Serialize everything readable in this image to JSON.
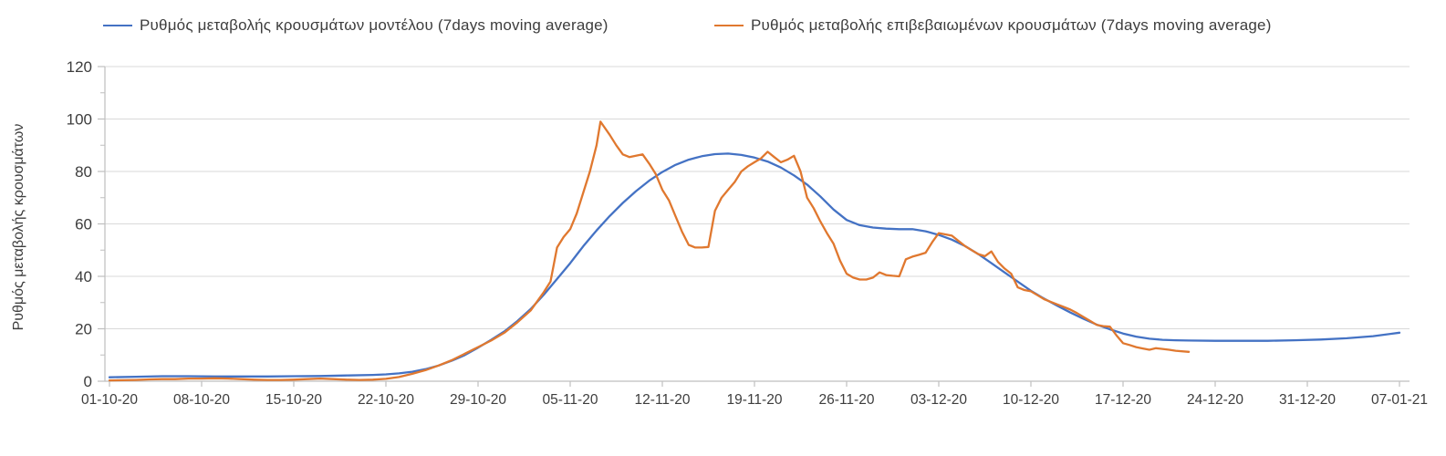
{
  "legend": [
    {
      "label": "Ρυθμός μεταβολής κρουσμάτων μοντέλου (7days moving average)",
      "color": "#4472C4"
    },
    {
      "label": "Ρυθμός μεταβολής επιβεβαιωμένων κρουσμάτων (7days moving average)",
      "color": "#E0782F"
    }
  ],
  "colors": {
    "model_line": "#4472C4",
    "confirmed_line": "#E0782F",
    "gridline": "#D9D9D9",
    "axis": "#BFBFBF",
    "tick_text": "#3d3d3d"
  },
  "chart_data": {
    "type": "line",
    "title": "",
    "xlabel": "",
    "ylabel": "Ρυθμός μεταβολής κρουσμάτων",
    "ylim": [
      0,
      120
    ],
    "y_major_ticks": [
      0,
      20,
      40,
      60,
      80,
      100,
      120
    ],
    "y_minor_tick_step": 10,
    "grid": "horizontal",
    "legend_position": "top",
    "x_axis": {
      "unit": "days since 01-10-20",
      "range_days": [
        0,
        98
      ],
      "tick_days": [
        0,
        7,
        14,
        21,
        28,
        35,
        42,
        49,
        56,
        63,
        70,
        77,
        84,
        91,
        98
      ],
      "tick_labels": [
        "01-10-20",
        "08-10-20",
        "15-10-20",
        "22-10-20",
        "29-10-20",
        "05-11-20",
        "12-11-20",
        "19-11-20",
        "26-11-20",
        "03-12-20",
        "10-12-20",
        "17-12-20",
        "24-12-20",
        "31-12-20",
        "07-01-21"
      ]
    },
    "series": [
      {
        "name": "Ρυθμός μεταβολής κρουσμάτων μοντέλου (7days moving average)",
        "color": "#4472C4",
        "points": [
          [
            0,
            1.5
          ],
          [
            2,
            1.7
          ],
          [
            4,
            1.9
          ],
          [
            6,
            1.9
          ],
          [
            8,
            1.8
          ],
          [
            10,
            1.8
          ],
          [
            12,
            1.8
          ],
          [
            14,
            1.9
          ],
          [
            16,
            2.0
          ],
          [
            18,
            2.2
          ],
          [
            20,
            2.4
          ],
          [
            21,
            2.6
          ],
          [
            22,
            3.0
          ],
          [
            23,
            3.6
          ],
          [
            24,
            4.6
          ],
          [
            25,
            6.0
          ],
          [
            26,
            7.8
          ],
          [
            27,
            10.0
          ],
          [
            28,
            12.8
          ],
          [
            29,
            15.8
          ],
          [
            30,
            19.0
          ],
          [
            31,
            23.0
          ],
          [
            32,
            27.5
          ],
          [
            33,
            33.0
          ],
          [
            34,
            39.0
          ],
          [
            35,
            45.0
          ],
          [
            36,
            51.5
          ],
          [
            37,
            57.5
          ],
          [
            38,
            63.0
          ],
          [
            39,
            68.0
          ],
          [
            40,
            72.5
          ],
          [
            41,
            76.5
          ],
          [
            42,
            79.8
          ],
          [
            43,
            82.5
          ],
          [
            44,
            84.5
          ],
          [
            45,
            85.8
          ],
          [
            46,
            86.6
          ],
          [
            47,
            86.8
          ],
          [
            48,
            86.3
          ],
          [
            49,
            85.3
          ],
          [
            50,
            83.8
          ],
          [
            51,
            81.5
          ],
          [
            52,
            78.5
          ],
          [
            53,
            75.0
          ],
          [
            54,
            70.5
          ],
          [
            55,
            65.5
          ],
          [
            56,
            61.5
          ],
          [
            57,
            59.5
          ],
          [
            58,
            58.6
          ],
          [
            59,
            58.2
          ],
          [
            60,
            58.0
          ],
          [
            61,
            58.0
          ],
          [
            62,
            57.2
          ],
          [
            63,
            55.8
          ],
          [
            64,
            54.0
          ],
          [
            65,
            51.5
          ],
          [
            66,
            48.5
          ],
          [
            67,
            45.0
          ],
          [
            68,
            41.5
          ],
          [
            69,
            38.0
          ],
          [
            70,
            34.5
          ],
          [
            71,
            31.5
          ],
          [
            72,
            28.8
          ],
          [
            73,
            26.2
          ],
          [
            74,
            23.8
          ],
          [
            75,
            21.6
          ],
          [
            76,
            19.8
          ],
          [
            77,
            18.2
          ],
          [
            78,
            17.0
          ],
          [
            79,
            16.2
          ],
          [
            80,
            15.8
          ],
          [
            81,
            15.6
          ],
          [
            82,
            15.5
          ],
          [
            84,
            15.4
          ],
          [
            86,
            15.4
          ],
          [
            88,
            15.4
          ],
          [
            90,
            15.6
          ],
          [
            92,
            15.9
          ],
          [
            94,
            16.4
          ],
          [
            96,
            17.2
          ],
          [
            98,
            18.5
          ]
        ]
      },
      {
        "name": "Ρυθμός μεταβολής επιβεβαιωμένων κρουσμάτων (7days moving average)",
        "color": "#E0782F",
        "points": [
          [
            0,
            0.3
          ],
          [
            1,
            0.4
          ],
          [
            2,
            0.5
          ],
          [
            3,
            0.7
          ],
          [
            4,
            0.8
          ],
          [
            5,
            0.8
          ],
          [
            6,
            1.0
          ],
          [
            7,
            1.0
          ],
          [
            8,
            1.1
          ],
          [
            9,
            1.0
          ],
          [
            10,
            0.8
          ],
          [
            11,
            0.6
          ],
          [
            12,
            0.5
          ],
          [
            13,
            0.5
          ],
          [
            14,
            0.6
          ],
          [
            15,
            0.8
          ],
          [
            16,
            1.0
          ],
          [
            17,
            0.8
          ],
          [
            18,
            0.6
          ],
          [
            19,
            0.5
          ],
          [
            20,
            0.6
          ],
          [
            21,
            0.9
          ],
          [
            22,
            1.6
          ],
          [
            23,
            2.8
          ],
          [
            24,
            4.2
          ],
          [
            25,
            6.0
          ],
          [
            26,
            8.0
          ],
          [
            27,
            10.5
          ],
          [
            28,
            13.0
          ],
          [
            29,
            15.5
          ],
          [
            30,
            18.5
          ],
          [
            31,
            22.5
          ],
          [
            32,
            27.0
          ],
          [
            33,
            34.0
          ],
          [
            33.5,
            38.0
          ],
          [
            34,
            51.0
          ],
          [
            34.5,
            55.0
          ],
          [
            35,
            58.0
          ],
          [
            35.5,
            64.0
          ],
          [
            36,
            72.0
          ],
          [
            36.5,
            80.0
          ],
          [
            37,
            90.0
          ],
          [
            37.3,
            99.0
          ],
          [
            38,
            94.0
          ],
          [
            38.5,
            90.0
          ],
          [
            39,
            86.5
          ],
          [
            39.5,
            85.5
          ],
          [
            40,
            86.0
          ],
          [
            40.5,
            86.5
          ],
          [
            41,
            83.0
          ],
          [
            41.5,
            79.0
          ],
          [
            42,
            73.0
          ],
          [
            42.5,
            69.0
          ],
          [
            43,
            63.0
          ],
          [
            43.5,
            57.0
          ],
          [
            44,
            52.0
          ],
          [
            44.5,
            51.0
          ],
          [
            45,
            51.0
          ],
          [
            45.5,
            51.2
          ],
          [
            46,
            65.0
          ],
          [
            46.5,
            70.0
          ],
          [
            47,
            73.0
          ],
          [
            47.5,
            76.0
          ],
          [
            48,
            80.0
          ],
          [
            48.5,
            82.0
          ],
          [
            49,
            83.5
          ],
          [
            49.5,
            85.0
          ],
          [
            50,
            87.5
          ],
          [
            50.5,
            85.5
          ],
          [
            51,
            83.5
          ],
          [
            51.5,
            84.5
          ],
          [
            52,
            86.0
          ],
          [
            52.5,
            80.0
          ],
          [
            53,
            70.0
          ],
          [
            53.5,
            66.0
          ],
          [
            54,
            61.0
          ],
          [
            54.5,
            56.5
          ],
          [
            55,
            52.5
          ],
          [
            55.5,
            46.0
          ],
          [
            56,
            41.0
          ],
          [
            56.5,
            39.5
          ],
          [
            57,
            38.8
          ],
          [
            57.5,
            38.8
          ],
          [
            58,
            39.5
          ],
          [
            58.5,
            41.5
          ],
          [
            59,
            40.5
          ],
          [
            59.5,
            40.2
          ],
          [
            60,
            40.0
          ],
          [
            60.5,
            46.5
          ],
          [
            61,
            47.5
          ],
          [
            61.5,
            48.2
          ],
          [
            62,
            49.0
          ],
          [
            62.5,
            53.0
          ],
          [
            63,
            56.5
          ],
          [
            63.5,
            56.0
          ],
          [
            64,
            55.5
          ],
          [
            64.5,
            53.5
          ],
          [
            65,
            51.5
          ],
          [
            65.5,
            50.0
          ],
          [
            66,
            48.5
          ],
          [
            66.5,
            47.7
          ],
          [
            67,
            49.5
          ],
          [
            67.5,
            45.5
          ],
          [
            68,
            43.0
          ],
          [
            68.5,
            41.0
          ],
          [
            69,
            35.8
          ],
          [
            69.5,
            34.8
          ],
          [
            70,
            34.3
          ],
          [
            70.5,
            32.8
          ],
          [
            71,
            31.3
          ],
          [
            71.5,
            30.3
          ],
          [
            72,
            29.3
          ],
          [
            72.5,
            28.3
          ],
          [
            73,
            27.3
          ],
          [
            73.5,
            26.0
          ],
          [
            74,
            24.5
          ],
          [
            74.5,
            23.0
          ],
          [
            75,
            21.5
          ],
          [
            75.5,
            21.0
          ],
          [
            76,
            20.8
          ],
          [
            76.5,
            17.5
          ],
          [
            77,
            14.5
          ],
          [
            77.5,
            13.8
          ],
          [
            78,
            13.0
          ],
          [
            78.5,
            12.5
          ],
          [
            79,
            12.0
          ],
          [
            79.5,
            12.6
          ],
          [
            80,
            12.3
          ],
          [
            80.5,
            12.0
          ],
          [
            81,
            11.6
          ],
          [
            82,
            11.2
          ]
        ]
      }
    ]
  }
}
